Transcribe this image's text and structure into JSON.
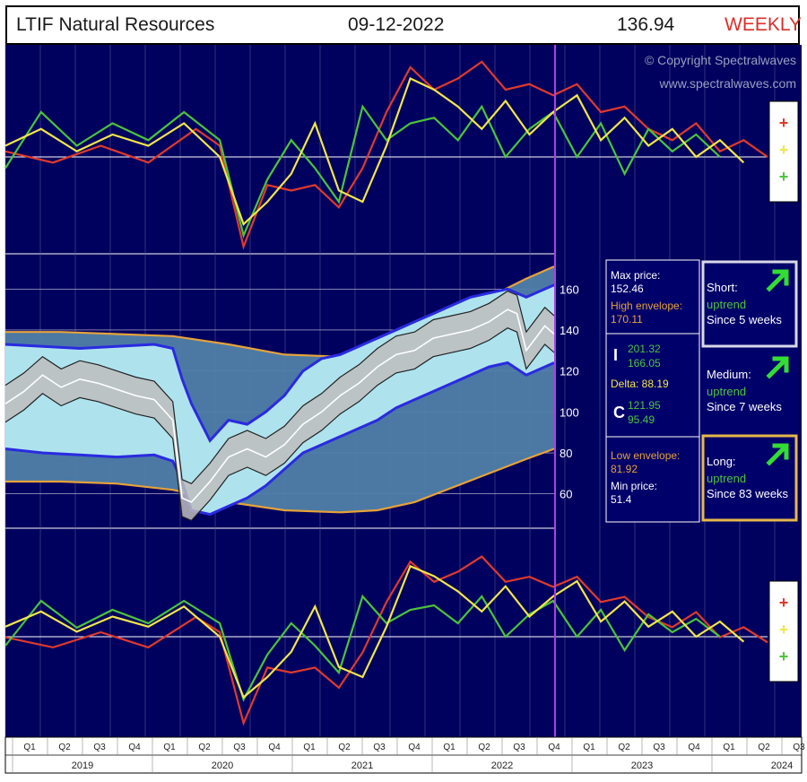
{
  "header": {
    "title": "LTIF Natural Resources",
    "date": "09-12-2022",
    "price": "136.94",
    "period": "WEEKLY"
  },
  "watermark": {
    "copyright": "© Copyright Spectralwaves",
    "website": "www.spectralwaves.com"
  },
  "colors": {
    "background": "#00005e",
    "short_line": "#f2e64a",
    "medium_line": "#4cc43a",
    "long_line": "#e03a2c",
    "envelope": "#e6a23a",
    "band": "#aee3ee",
    "band_border": "#2a2ae0",
    "inner_band": "#bdbdbd",
    "price": "#ffffff",
    "current_marker": "#b040e0"
  },
  "legend_signs": [
    "+",
    "+",
    "+"
  ],
  "stats": {
    "max_label": "Max price:",
    "max_value": "152.46",
    "high_env_label": "High envelope:",
    "high_env_value": "170.11",
    "i_label": "I",
    "i_values": [
      "201.32",
      "166.05"
    ],
    "delta": "Delta: 88.19",
    "c_label": "C",
    "c_values": [
      "121.95",
      "95.49"
    ],
    "low_env_label": "Low envelope:",
    "low_env_value": "81.92",
    "min_label": "Min price:",
    "min_value": "51.4"
  },
  "trends": [
    {
      "name": "Short:",
      "status": "uptrend",
      "since": "Since 5 weeks"
    },
    {
      "name": "Medium:",
      "status": "uptrend",
      "since": "Since 7 weeks"
    },
    {
      "name": "Long:",
      "status": "uptrend",
      "since": "Since 83 weeks"
    }
  ],
  "axis": {
    "quarters": [
      "Q1",
      "Q2",
      "Q3",
      "Q4",
      "Q1",
      "Q2",
      "Q3",
      "Q4",
      "Q1",
      "Q2",
      "Q3",
      "Q4",
      "Q1",
      "Q2",
      "Q3",
      "Q4",
      "Q1",
      "Q2",
      "Q3",
      "Q4",
      "Q1",
      "Q2",
      "Q3"
    ],
    "years": [
      "2019",
      "2020",
      "2021",
      "2022",
      "2023",
      "2024"
    ]
  },
  "chart_data": {
    "type": "line",
    "title": "LTIF Natural Resources",
    "y_ticks": [
      60,
      80,
      100,
      120,
      140,
      160
    ],
    "ylim": [
      45,
      175
    ],
    "x_range": [
      "2019-Q1",
      "2024-Q3"
    ],
    "last_price": 136.94,
    "price_series": [
      [
        0,
        104
      ],
      [
        2,
        110
      ],
      [
        4,
        118
      ],
      [
        6,
        112
      ],
      [
        8,
        116
      ],
      [
        10,
        114
      ],
      [
        12,
        111
      ],
      [
        14,
        108
      ],
      [
        16,
        106
      ],
      [
        18,
        96
      ],
      [
        19,
        58
      ],
      [
        20,
        56
      ],
      [
        22,
        66
      ],
      [
        24,
        78
      ],
      [
        26,
        82
      ],
      [
        28,
        78
      ],
      [
        30,
        84
      ],
      [
        32,
        94
      ],
      [
        34,
        100
      ],
      [
        36,
        108
      ],
      [
        38,
        114
      ],
      [
        40,
        122
      ],
      [
        42,
        128
      ],
      [
        44,
        130
      ],
      [
        46,
        136
      ],
      [
        48,
        138
      ],
      [
        50,
        140
      ],
      [
        52,
        144
      ],
      [
        54,
        150
      ],
      [
        55,
        148
      ],
      [
        56,
        130
      ],
      [
        57,
        136
      ],
      [
        58,
        142
      ],
      [
        59,
        138
      ]
    ],
    "band_upper": [
      [
        0,
        133
      ],
      [
        4,
        132
      ],
      [
        8,
        131
      ],
      [
        12,
        132
      ],
      [
        16,
        133
      ],
      [
        18,
        131
      ],
      [
        19,
        116
      ],
      [
        20,
        104
      ],
      [
        22,
        86
      ],
      [
        24,
        96
      ],
      [
        26,
        94
      ],
      [
        28,
        100
      ],
      [
        30,
        108
      ],
      [
        32,
        120
      ],
      [
        34,
        126
      ],
      [
        36,
        128
      ],
      [
        38,
        132
      ],
      [
        40,
        136
      ],
      [
        42,
        140
      ],
      [
        44,
        144
      ],
      [
        46,
        148
      ],
      [
        48,
        152
      ],
      [
        50,
        156
      ],
      [
        52,
        158
      ],
      [
        54,
        160
      ],
      [
        56,
        156
      ],
      [
        58,
        160
      ],
      [
        59,
        162
      ]
    ],
    "band_lower": [
      [
        0,
        82
      ],
      [
        4,
        80
      ],
      [
        8,
        79
      ],
      [
        12,
        78
      ],
      [
        16,
        79
      ],
      [
        18,
        76
      ],
      [
        19,
        66
      ],
      [
        20,
        52
      ],
      [
        22,
        50
      ],
      [
        24,
        54
      ],
      [
        26,
        58
      ],
      [
        28,
        64
      ],
      [
        30,
        72
      ],
      [
        32,
        80
      ],
      [
        34,
        84
      ],
      [
        36,
        88
      ],
      [
        38,
        92
      ],
      [
        40,
        96
      ],
      [
        42,
        102
      ],
      [
        44,
        106
      ],
      [
        46,
        110
      ],
      [
        48,
        114
      ],
      [
        50,
        118
      ],
      [
        52,
        122
      ],
      [
        54,
        124
      ],
      [
        56,
        118
      ],
      [
        58,
        122
      ],
      [
        59,
        124
      ]
    ],
    "high_envelope": [
      [
        0,
        139
      ],
      [
        6,
        139
      ],
      [
        12,
        138
      ],
      [
        18,
        137
      ],
      [
        24,
        133
      ],
      [
        30,
        128
      ],
      [
        36,
        127
      ],
      [
        40,
        129
      ],
      [
        44,
        136
      ],
      [
        48,
        146
      ],
      [
        52,
        156
      ],
      [
        56,
        165
      ],
      [
        59,
        171
      ]
    ],
    "low_envelope": [
      [
        0,
        66
      ],
      [
        6,
        66
      ],
      [
        12,
        65
      ],
      [
        18,
        62
      ],
      [
        24,
        56
      ],
      [
        30,
        52
      ],
      [
        36,
        51
      ],
      [
        40,
        52
      ],
      [
        44,
        56
      ],
      [
        48,
        63
      ],
      [
        52,
        70
      ],
      [
        56,
        77
      ],
      [
        59,
        82
      ]
    ],
    "short_osc_top": [
      [
        0,
        0.2
      ],
      [
        3,
        0.5
      ],
      [
        6,
        0.1
      ],
      [
        9,
        0.4
      ],
      [
        12,
        0.2
      ],
      [
        15,
        0.6
      ],
      [
        18,
        0.0
      ],
      [
        20,
        -1.2
      ],
      [
        22,
        -0.8
      ],
      [
        24,
        -0.3
      ],
      [
        26,
        0.6
      ],
      [
        28,
        -0.6
      ],
      [
        30,
        -0.8
      ],
      [
        32,
        0.2
      ],
      [
        34,
        1.4
      ],
      [
        36,
        1.2
      ],
      [
        38,
        0.9
      ],
      [
        40,
        0.5
      ],
      [
        42,
        1.0
      ],
      [
        44,
        0.4
      ],
      [
        46,
        0.8
      ],
      [
        48,
        1.1
      ],
      [
        50,
        0.3
      ],
      [
        52,
        0.7
      ],
      [
        54,
        0.2
      ],
      [
        56,
        0.5
      ],
      [
        58,
        0.0
      ],
      [
        60,
        0.3
      ],
      [
        62,
        -0.1
      ]
    ],
    "medium_osc_top": [
      [
        0,
        -0.2
      ],
      [
        3,
        0.8
      ],
      [
        6,
        0.2
      ],
      [
        9,
        0.6
      ],
      [
        12,
        0.3
      ],
      [
        15,
        0.8
      ],
      [
        18,
        0.3
      ],
      [
        20,
        -1.4
      ],
      [
        22,
        -0.4
      ],
      [
        24,
        0.3
      ],
      [
        26,
        -0.2
      ],
      [
        28,
        -0.8
      ],
      [
        30,
        0.9
      ],
      [
        32,
        0.3
      ],
      [
        34,
        0.6
      ],
      [
        36,
        0.7
      ],
      [
        38,
        0.3
      ],
      [
        40,
        0.9
      ],
      [
        42,
        0.0
      ],
      [
        44,
        0.5
      ],
      [
        46,
        0.8
      ],
      [
        48,
        0.0
      ],
      [
        50,
        0.6
      ],
      [
        52,
        -0.3
      ],
      [
        54,
        0.5
      ],
      [
        56,
        0.1
      ],
      [
        58,
        0.4
      ],
      [
        60,
        0.0
      ]
    ],
    "long_osc_top": [
      [
        0,
        0.1
      ],
      [
        4,
        -0.1
      ],
      [
        8,
        0.2
      ],
      [
        12,
        -0.1
      ],
      [
        16,
        0.5
      ],
      [
        18,
        0.2
      ],
      [
        20,
        -1.6
      ],
      [
        22,
        -0.5
      ],
      [
        24,
        -0.6
      ],
      [
        26,
        -0.5
      ],
      [
        28,
        -0.9
      ],
      [
        30,
        -0.2
      ],
      [
        32,
        0.8
      ],
      [
        34,
        1.6
      ],
      [
        36,
        1.2
      ],
      [
        38,
        1.4
      ],
      [
        40,
        1.7
      ],
      [
        42,
        1.2
      ],
      [
        44,
        1.3
      ],
      [
        46,
        1.1
      ],
      [
        48,
        1.3
      ],
      [
        50,
        0.8
      ],
      [
        52,
        0.9
      ],
      [
        54,
        0.5
      ],
      [
        56,
        0.3
      ],
      [
        58,
        0.6
      ],
      [
        60,
        0.1
      ],
      [
        62,
        0.3
      ],
      [
        64,
        0.0
      ]
    ]
  }
}
